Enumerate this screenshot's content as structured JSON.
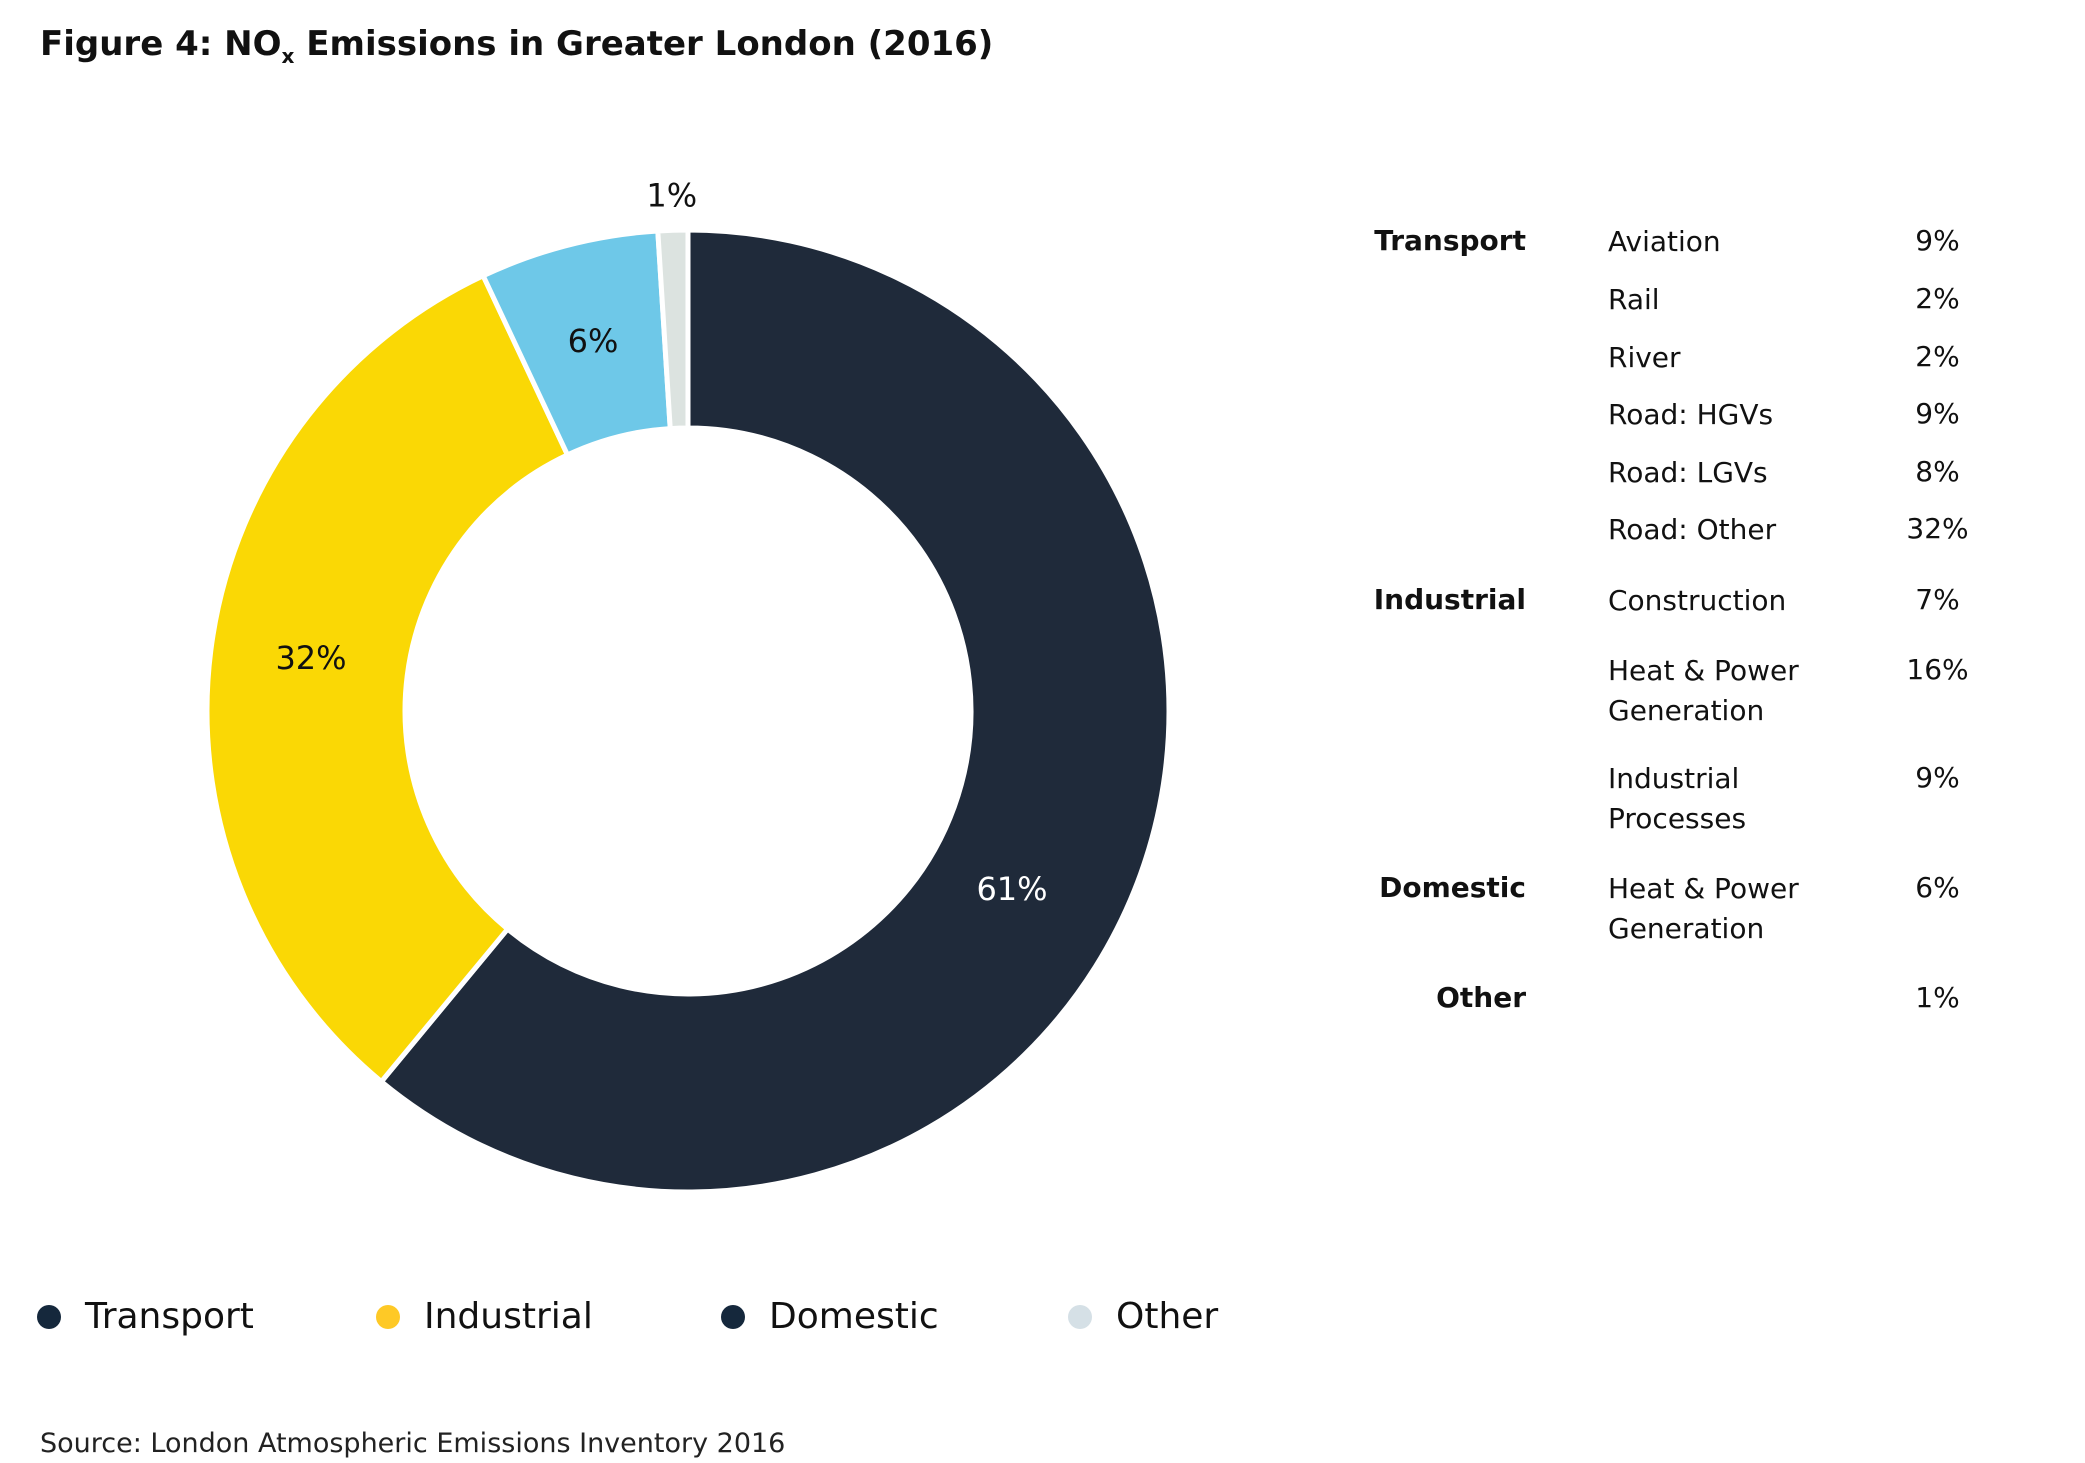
{
  "title": {
    "main": "Figure 4: NO",
    "subscript": "x",
    "rest": " Emissions in Greater London (2016)"
  },
  "chart_data": {
    "type": "pie",
    "donut": true,
    "categories": [
      "Transport",
      "Industrial",
      "Domestic",
      "Other"
    ],
    "values": [
      61,
      32,
      6,
      1
    ],
    "data_labels": [
      "61%",
      "32%",
      "6%",
      "1%"
    ],
    "slice_colors": [
      "#1f2a3a",
      "#fad805",
      "#6ec8e8",
      "#dce3e0"
    ],
    "legend": {
      "placement": "bottom",
      "entries": [
        {
          "label": "Transport",
          "color": "#15283c"
        },
        {
          "label": "Industrial",
          "color": "#fec926"
        },
        {
          "label": "Domestic",
          "color": "#15283c"
        },
        {
          "label": "Other",
          "color": "#d5e0e6"
        }
      ]
    }
  },
  "breakdown": [
    {
      "category": "Transport",
      "items": [
        {
          "name": "Aviation",
          "value": "9%"
        },
        {
          "name": "Rail",
          "value": "2%"
        },
        {
          "name": "River",
          "value": "2%"
        },
        {
          "name": "Road: HGVs",
          "value": "9%"
        },
        {
          "name": "Road: LGVs",
          "value": "8%"
        },
        {
          "name": "Road: Other",
          "value": "32%"
        }
      ]
    },
    {
      "category": "Industrial",
      "items": [
        {
          "name": "Construction",
          "value": "7%"
        },
        {
          "name": "Heat & Power Generation",
          "value": "16%"
        },
        {
          "name": "Industrial Processes",
          "value": "9%"
        }
      ]
    },
    {
      "category": "Domestic",
      "items": [
        {
          "name": "Heat & Power Generation",
          "value": "6%"
        }
      ]
    },
    {
      "category": "Other",
      "items": [
        {
          "name": "",
          "value": "1%"
        }
      ]
    }
  ],
  "source": "Source: London Atmospheric Emissions Inventory 2016"
}
